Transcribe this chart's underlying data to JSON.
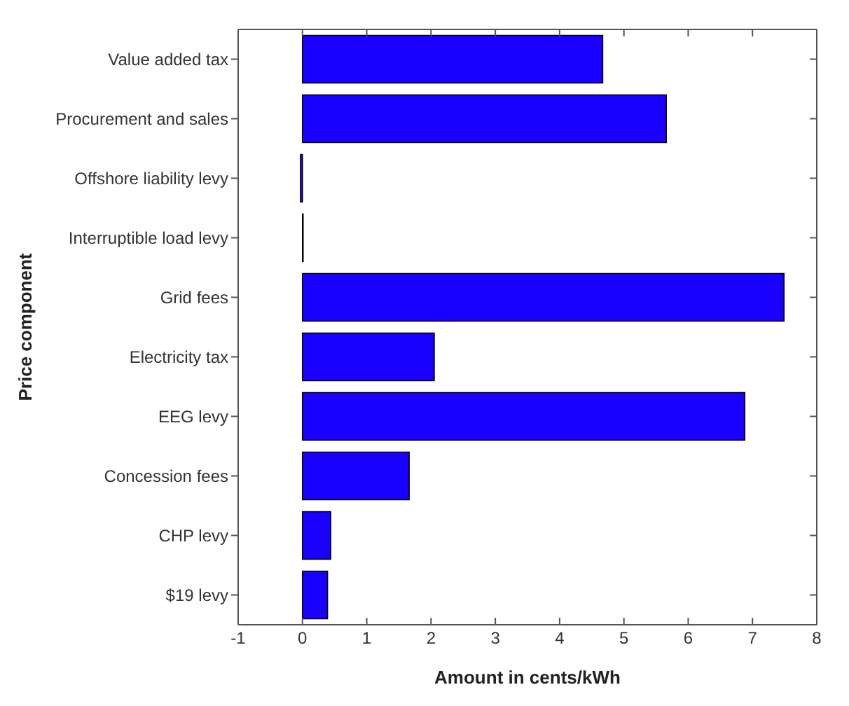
{
  "chart_data": {
    "type": "bar",
    "orientation": "horizontal",
    "xlabel": "Amount in cents/kWh",
    "ylabel": "Price component",
    "categories": [
      "Value added tax",
      "Procurement and sales",
      "Offshore liability levy",
      "Interruptible load levy",
      "Grid fees",
      "Electricity tax",
      "EEG levy",
      "Concession fees",
      "CHP levy",
      "$19 levy"
    ],
    "values": [
      4.67,
      5.66,
      -0.03,
      0.01,
      7.49,
      2.05,
      6.88,
      1.66,
      0.44,
      0.39
    ],
    "color": "#1a00ff",
    "xlim": [
      -1,
      8
    ],
    "xticks": [
      -1,
      0,
      1,
      2,
      3,
      4,
      5,
      6,
      7,
      8
    ],
    "grid": false
  }
}
